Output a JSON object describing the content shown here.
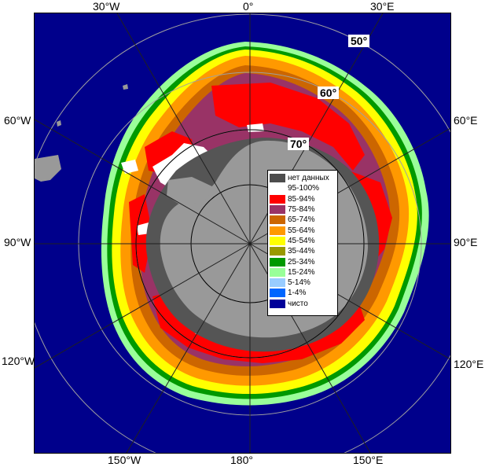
{
  "map": {
    "top_labels": [
      "30°W",
      "0°",
      "30°E"
    ],
    "left_labels": [
      "60°W",
      "90°W",
      "120°W"
    ],
    "right_labels": [
      "60°E",
      "90°E",
      "120°E"
    ],
    "bottom_labels": [
      "150°W",
      "180°",
      "150°E"
    ],
    "latitude_labels": [
      "50°",
      "60°",
      "70°"
    ]
  },
  "legend": {
    "items": [
      {
        "label": "нет данных",
        "color": "#4d4d4d"
      },
      {
        "label": "95-100%",
        "color": "#ffffff"
      },
      {
        "label": "85-94%",
        "color": "#ff0000"
      },
      {
        "label": "75-84%",
        "color": "#993366"
      },
      {
        "label": "65-74%",
        "color": "#cc6600"
      },
      {
        "label": "55-64%",
        "color": "#ff9900"
      },
      {
        "label": "45-54%",
        "color": "#ffff00"
      },
      {
        "label": "35-44%",
        "color": "#999900"
      },
      {
        "label": "25-34%",
        "color": "#009900"
      },
      {
        "label": "15-24%",
        "color": "#99ff99"
      },
      {
        "label": "5-14%",
        "color": "#99ccff"
      },
      {
        "label": "1-4%",
        "color": "#0066ff"
      },
      {
        "label": "чисто",
        "color": "#000099"
      }
    ]
  },
  "colors": {
    "ocean": "#000099",
    "land": "#999999",
    "no_data": "#555555",
    "grid": "#a0a0a0"
  }
}
